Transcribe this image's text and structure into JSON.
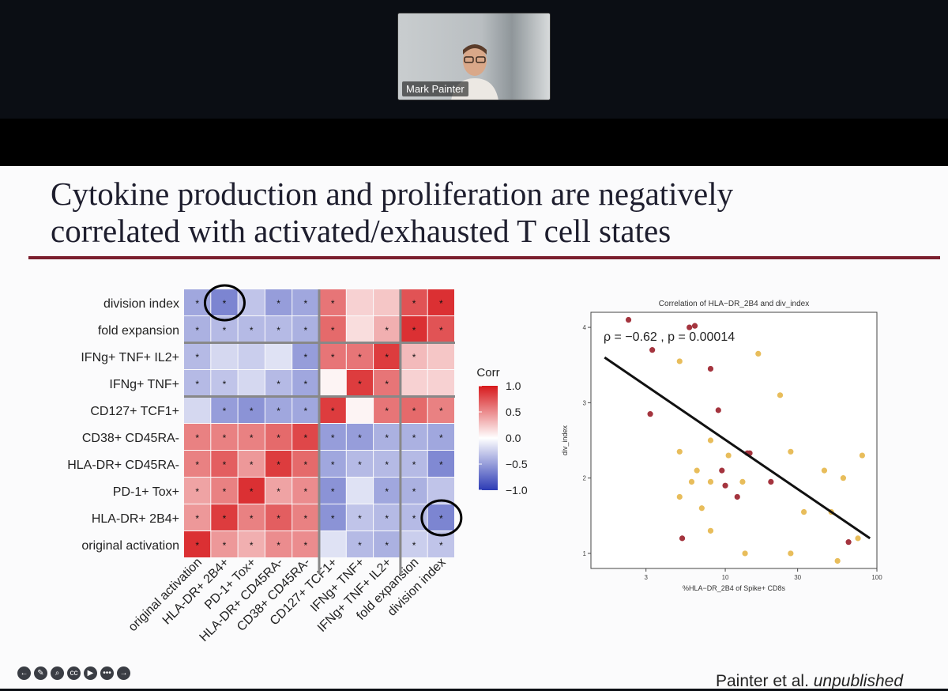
{
  "participant": {
    "name": "Mark Painter"
  },
  "slide": {
    "title_line1": "Cytokine production and proliferation are negatively",
    "title_line2": "correlated with activated/exhausted T cell states",
    "footer_author": "Painter et al.",
    "footer_note": "unpublished"
  },
  "colors": {
    "title_rule": "#7b1f2e",
    "corr_pos": "#d7191c",
    "corr_neg": "#2c3bb5",
    "scatter_red": "#a4343e",
    "scatter_gold": "#e8bd5b"
  },
  "toolbar": [
    "back-icon",
    "pen-icon",
    "zoom-icon",
    "cc-icon",
    "camera-icon",
    "more-icon",
    "next-icon"
  ],
  "chart_data": [
    {
      "type": "heatmap",
      "rows": [
        "division index",
        "fold expansion",
        "IFNg+ TNF+ IL2+",
        "IFNg+ TNF+",
        "CD127+ TCF1+",
        "CD38+ CD45RA-",
        "HLA-DR+ CD45RA-",
        "PD-1+ Tox+",
        "HLA-DR+ 2B4+",
        "original activation"
      ],
      "columns": [
        "original activation",
        "HLA-DR+ 2B4+",
        "PD-1+ Tox+",
        "HLA-DR+ CD45RA-",
        "CD38+ CD45RA-",
        "CD127+ TCF1+",
        "IFNg+ TNF+",
        "IFNg+ TNF+ IL2+",
        "fold expansion",
        "division index"
      ],
      "values": [
        [
          -0.45,
          -0.62,
          -0.3,
          -0.5,
          -0.45,
          0.6,
          0.2,
          0.25,
          0.75,
          0.9
        ],
        [
          -0.4,
          -0.35,
          -0.35,
          -0.35,
          -0.4,
          0.65,
          0.15,
          0.35,
          0.9,
          0.75
        ],
        [
          -0.35,
          -0.2,
          -0.25,
          -0.15,
          -0.5,
          0.6,
          0.6,
          0.85,
          0.3,
          0.25
        ],
        [
          -0.35,
          -0.3,
          -0.2,
          -0.35,
          -0.45,
          0.05,
          0.85,
          0.6,
          0.2,
          0.2
        ],
        [
          -0.2,
          -0.5,
          -0.55,
          -0.45,
          -0.45,
          0.85,
          0.05,
          0.6,
          0.65,
          0.55
        ],
        [
          0.55,
          0.55,
          0.55,
          0.65,
          0.8,
          -0.5,
          -0.5,
          -0.4,
          -0.4,
          -0.45
        ],
        [
          0.55,
          0.7,
          0.45,
          0.85,
          0.65,
          -0.45,
          -0.35,
          -0.35,
          -0.35,
          -0.6
        ],
        [
          0.4,
          0.55,
          0.9,
          0.4,
          0.5,
          -0.55,
          -0.15,
          -0.45,
          -0.4,
          -0.3
        ],
        [
          0.45,
          0.85,
          0.55,
          0.7,
          0.55,
          -0.55,
          -0.3,
          -0.35,
          -0.35,
          -0.62
        ],
        [
          0.9,
          0.45,
          0.35,
          0.5,
          0.5,
          -0.15,
          -0.35,
          -0.4,
          -0.25,
          -0.3
        ]
      ],
      "significant": [
        [
          1,
          1,
          0,
          1,
          1,
          1,
          0,
          0,
          1,
          1
        ],
        [
          1,
          1,
          1,
          1,
          1,
          1,
          0,
          1,
          1,
          1
        ],
        [
          1,
          0,
          0,
          0,
          1,
          1,
          1,
          1,
          1,
          0
        ],
        [
          1,
          1,
          0,
          1,
          1,
          0,
          1,
          1,
          0,
          0
        ],
        [
          0,
          1,
          1,
          1,
          1,
          1,
          0,
          1,
          1,
          1
        ],
        [
          1,
          1,
          1,
          1,
          1,
          1,
          1,
          1,
          1,
          1
        ],
        [
          1,
          1,
          1,
          1,
          1,
          1,
          1,
          1,
          1,
          1
        ],
        [
          1,
          1,
          1,
          1,
          1,
          1,
          0,
          1,
          1,
          0
        ],
        [
          1,
          1,
          1,
          1,
          1,
          1,
          1,
          1,
          1,
          1
        ],
        [
          1,
          1,
          1,
          1,
          1,
          0,
          1,
          1,
          1,
          1
        ]
      ],
      "star": "*",
      "legend_title": "Corr",
      "legend_ticks": [
        "1.0",
        "0.5",
        "0.0",
        "−0.5",
        "−1.0"
      ],
      "legend_values": [
        1.0,
        0.5,
        0.0,
        -0.5,
        -1.0
      ],
      "clim": [
        -1,
        1
      ],
      "circled_cells": [
        [
          0,
          1
        ],
        [
          8,
          9
        ]
      ]
    },
    {
      "type": "scatter",
      "title": "Correlation of HLA−DR_2B4 and div_index",
      "xlabel": "%HLA−DR_2B4 of Spike+ CD8s",
      "ylabel": "div_index",
      "xscale": "log",
      "xlim": [
        1.3,
        100
      ],
      "ylim": [
        0.8,
        4.2
      ],
      "xticks": [
        3,
        10,
        30,
        100
      ],
      "xtick_labels": [
        "3",
        "10",
        "30",
        "100"
      ],
      "yticks": [
        1,
        2,
        3,
        4
      ],
      "ytick_labels": [
        "1",
        "2",
        "3",
        "4"
      ],
      "annotation": "ρ = −0.62 , p = 0.00014",
      "fit_line": {
        "x": [
          1.6,
          90
        ],
        "y": [
          3.6,
          1.2
        ]
      },
      "points": [
        {
          "x": 2.3,
          "y": 4.1,
          "c": "red"
        },
        {
          "x": 5.8,
          "y": 4.0,
          "c": "red"
        },
        {
          "x": 6.3,
          "y": 4.02,
          "c": "red"
        },
        {
          "x": 3.3,
          "y": 3.7,
          "c": "red"
        },
        {
          "x": 5.0,
          "y": 3.55,
          "c": "gold"
        },
        {
          "x": 8.0,
          "y": 3.45,
          "c": "red"
        },
        {
          "x": 16.5,
          "y": 3.65,
          "c": "gold"
        },
        {
          "x": 3.2,
          "y": 2.85,
          "c": "red"
        },
        {
          "x": 9.0,
          "y": 2.9,
          "c": "red"
        },
        {
          "x": 23.0,
          "y": 3.1,
          "c": "gold"
        },
        {
          "x": 8.0,
          "y": 2.5,
          "c": "gold"
        },
        {
          "x": 5.0,
          "y": 2.35,
          "c": "gold"
        },
        {
          "x": 10.5,
          "y": 2.3,
          "c": "gold"
        },
        {
          "x": 14.0,
          "y": 2.33,
          "c": "red"
        },
        {
          "x": 14.5,
          "y": 2.33,
          "c": "red"
        },
        {
          "x": 27.0,
          "y": 2.35,
          "c": "gold"
        },
        {
          "x": 6.5,
          "y": 2.1,
          "c": "gold"
        },
        {
          "x": 9.5,
          "y": 2.1,
          "c": "red"
        },
        {
          "x": 13.0,
          "y": 1.95,
          "c": "gold"
        },
        {
          "x": 20.0,
          "y": 1.95,
          "c": "red"
        },
        {
          "x": 60.0,
          "y": 2.0,
          "c": "gold"
        },
        {
          "x": 8.0,
          "y": 1.95,
          "c": "gold"
        },
        {
          "x": 45.0,
          "y": 2.1,
          "c": "gold"
        },
        {
          "x": 80.0,
          "y": 2.3,
          "c": "gold"
        },
        {
          "x": 6.0,
          "y": 1.95,
          "c": "gold"
        },
        {
          "x": 10.0,
          "y": 1.9,
          "c": "red"
        },
        {
          "x": 12.0,
          "y": 1.75,
          "c": "red"
        },
        {
          "x": 5.0,
          "y": 1.75,
          "c": "gold"
        },
        {
          "x": 7.0,
          "y": 1.6,
          "c": "gold"
        },
        {
          "x": 33.0,
          "y": 1.55,
          "c": "gold"
        },
        {
          "x": 50.0,
          "y": 1.55,
          "c": "gold"
        },
        {
          "x": 8.0,
          "y": 1.3,
          "c": "gold"
        },
        {
          "x": 5.2,
          "y": 1.2,
          "c": "red"
        },
        {
          "x": 65.0,
          "y": 1.15,
          "c": "red"
        },
        {
          "x": 75.0,
          "y": 1.2,
          "c": "gold"
        },
        {
          "x": 27.0,
          "y": 1.0,
          "c": "gold"
        },
        {
          "x": 55.0,
          "y": 0.9,
          "c": "gold"
        },
        {
          "x": 13.5,
          "y": 1.0,
          "c": "gold"
        }
      ]
    }
  ]
}
